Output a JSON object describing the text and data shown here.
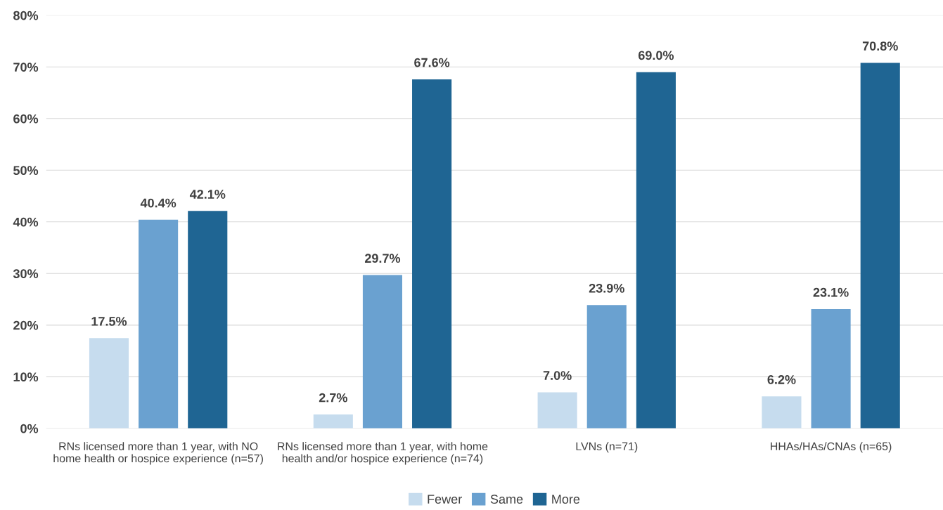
{
  "chart_data": {
    "type": "bar",
    "categories": [
      "RNs licensed more than 1 year, with NO\nhome health or hospice experience (n=57)",
      "RNs licensed more than 1 year, with home\nhealth and/or hospice experience (n=74)",
      "LVNs (n=71)",
      "HHAs/HAs/CNAs (n=65)"
    ],
    "series": [
      {
        "name": "Fewer",
        "color": "#c6dcee",
        "values": [
          17.5,
          2.7,
          7.0,
          6.2
        ],
        "value_labels": [
          "17.5%",
          "2.7%",
          "7.0%",
          "6.2%"
        ]
      },
      {
        "name": "Same",
        "color": "#6aa1d0",
        "values": [
          40.4,
          29.7,
          23.9,
          23.1
        ],
        "value_labels": [
          "40.4%",
          "29.7%",
          "23.9%",
          "23.1%"
        ]
      },
      {
        "name": "More",
        "color": "#1f6593",
        "values": [
          42.1,
          67.6,
          69.0,
          70.8
        ],
        "value_labels": [
          "42.1%",
          "67.6%",
          "69.0%",
          "70.8%"
        ]
      }
    ],
    "ylim": [
      0,
      80
    ],
    "yticks": [
      {
        "value": 0,
        "label": "0%"
      },
      {
        "value": 10,
        "label": "10%"
      },
      {
        "value": 20,
        "label": "20%"
      },
      {
        "value": 30,
        "label": "30%"
      },
      {
        "value": 40,
        "label": "40%"
      },
      {
        "value": 50,
        "label": "50%"
      },
      {
        "value": 60,
        "label": "60%"
      },
      {
        "value": 70,
        "label": "70%"
      },
      {
        "value": 80,
        "label": "80%"
      }
    ],
    "grid": "y",
    "legend": "bottom"
  }
}
